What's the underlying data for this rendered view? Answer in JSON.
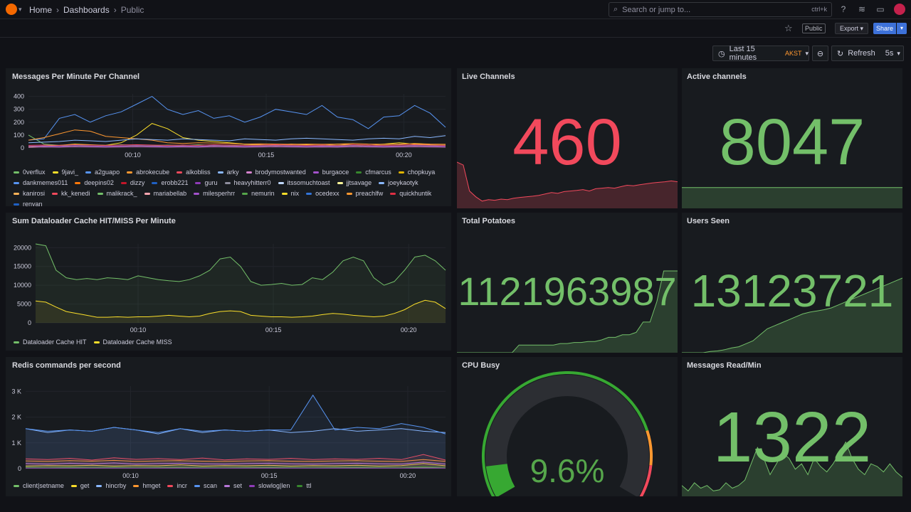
{
  "breadcrumb": {
    "home": "Home",
    "dashboards": "Dashboards",
    "current": "Public"
  },
  "search": {
    "placeholder": "Search or jump to...",
    "shortcut": "ctrl+k"
  },
  "subbar": {
    "public_tag": "Public",
    "export_label": "Export",
    "share_label": "Share"
  },
  "timepicker": {
    "range": "Last 15 minutes",
    "tz": "AKST",
    "refresh_label": "Refresh",
    "interval": "5s"
  },
  "colors": {
    "red": "#f2495c",
    "green": "#73bf69",
    "yellow": "#fade2a",
    "blue": "#5794f2"
  },
  "panels": {
    "messages": {
      "title": "Messages Per Minute Per Channel"
    },
    "live": {
      "title": "Live Channels",
      "value": "460"
    },
    "active": {
      "title": "Active channels",
      "value": "8047"
    },
    "dataloader": {
      "title": "Sum Dataloader Cache HIT/MISS Per Minute"
    },
    "potatoes": {
      "title": "Total Potatoes",
      "value": "1121963987"
    },
    "users": {
      "title": "Users Seen",
      "value": "13123721"
    },
    "redis": {
      "title": "Redis commands per second"
    },
    "cpu": {
      "title": "CPU Busy",
      "value": "9.6%",
      "fraction": 0.096
    },
    "msgread": {
      "title": "Messages Read/Min",
      "value": "1322"
    }
  },
  "chart_data": [
    {
      "type": "line",
      "title": "Messages Per Minute Per Channel",
      "x_ticks": [
        "00:10",
        "00:15",
        "00:20"
      ],
      "y_ticks": [
        "0",
        "100",
        "200",
        "300",
        "400"
      ],
      "ylim": [
        0,
        420
      ],
      "legend_placement": "bottom",
      "series": [
        {
          "name": "0verflux",
          "color": "#73bf69",
          "values": [
            100,
            30,
            20,
            18,
            22,
            20,
            25,
            20,
            18,
            22,
            20,
            25,
            20,
            18,
            22,
            20,
            18,
            20,
            22,
            20,
            18,
            20,
            22,
            20,
            25,
            20,
            18,
            22
          ]
        },
        {
          "name": "9javi_",
          "color": "#fade2a",
          "values": [
            10,
            15,
            20,
            30,
            25,
            20,
            40,
            100,
            190,
            150,
            80,
            60,
            50,
            40,
            30,
            25,
            20,
            30,
            25,
            20,
            30,
            25,
            20,
            30,
            40,
            30,
            25,
            20
          ]
        },
        {
          "name": "a2guapo",
          "color": "#5794f2",
          "values": [
            60,
            70,
            230,
            260,
            200,
            250,
            280,
            340,
            400,
            300,
            260,
            290,
            230,
            250,
            200,
            240,
            300,
            280,
            260,
            330,
            240,
            220,
            150,
            240,
            250,
            330,
            270,
            160
          ]
        },
        {
          "name": "abrokecube",
          "color": "#ff9830",
          "values": [
            60,
            80,
            110,
            140,
            130,
            90,
            80,
            70,
            60,
            40,
            35,
            40,
            38,
            35,
            30,
            32,
            30,
            28,
            30,
            28,
            30,
            35,
            30,
            28,
            30,
            35,
            30,
            28
          ]
        },
        {
          "name": "alkobliss",
          "color": "#f2495c",
          "values": [
            20,
            22,
            20,
            25,
            22,
            20,
            22,
            25,
            22,
            20,
            22,
            20,
            25,
            22,
            20,
            22,
            25,
            22,
            20,
            22,
            20,
            25,
            22,
            20,
            22,
            25,
            22,
            20
          ]
        },
        {
          "name": "arky",
          "color": "#8ab8ff",
          "values": [
            40,
            45,
            50,
            60,
            55,
            50,
            60,
            70,
            65,
            60,
            70,
            65,
            60,
            55,
            70,
            65,
            60,
            70,
            75,
            70,
            65,
            60,
            70,
            75,
            70,
            90,
            80,
            95
          ]
        },
        {
          "name": "brodymostwanted",
          "color": "#d683ce",
          "values": [
            5,
            8,
            6,
            10,
            8,
            6,
            8,
            10,
            8,
            6,
            8,
            6,
            10,
            8,
            6,
            8,
            10,
            8,
            6,
            8,
            6,
            10,
            8,
            6,
            8,
            10,
            8,
            6
          ]
        },
        {
          "name": "burgaoce",
          "color": "#a352cc",
          "values": [
            12,
            15,
            12,
            18,
            15,
            12,
            15,
            18,
            15,
            12,
            15,
            12,
            18,
            15,
            12,
            15,
            18,
            15,
            12,
            15,
            12,
            18,
            15,
            12,
            15,
            18,
            15,
            12
          ]
        }
      ]
    },
    {
      "type": "area",
      "title": "Live Channels",
      "values": [
        160,
        150,
        60,
        40,
        25,
        30,
        28,
        32,
        30,
        35,
        38,
        40,
        42,
        45,
        50,
        55,
        52,
        58,
        60,
        62,
        65,
        60,
        68,
        70,
        72,
        70,
        75,
        80,
        78,
        82,
        85,
        88,
        90,
        92,
        95,
        92
      ]
    },
    {
      "type": "area",
      "title": "Active channels",
      "values": [
        50,
        50,
        50,
        50,
        50,
        50,
        50,
        50,
        50,
        50,
        50,
        50
      ]
    },
    {
      "type": "line",
      "title": "Sum Dataloader Cache HIT/MISS Per Minute",
      "x_ticks": [
        "00:10",
        "00:15",
        "00:20"
      ],
      "y_ticks": [
        "0",
        "5000",
        "10000",
        "15000",
        "20000"
      ],
      "ylim": [
        0,
        21000
      ],
      "legend_placement": "bottom",
      "series": [
        {
          "name": "Dataloader Cache HIT",
          "color": "#73bf69",
          "values": [
            21000,
            20500,
            14000,
            12000,
            11500,
            11800,
            11500,
            12000,
            11800,
            11500,
            12500,
            12000,
            11500,
            11200,
            11000,
            11500,
            12500,
            14000,
            17000,
            17500,
            15000,
            11000,
            10000,
            10200,
            10500,
            10000,
            10200,
            12000,
            11500,
            13500,
            16500,
            17500,
            16500,
            12000,
            10000,
            11000,
            14000,
            17500,
            18000,
            16500,
            14000
          ]
        },
        {
          "name": "Dataloader Cache MISS",
          "color": "#fade2a",
          "values": [
            5800,
            5500,
            4200,
            3000,
            2500,
            2000,
            1500,
            1500,
            1600,
            1500,
            1600,
            1600,
            1800,
            2000,
            1800,
            1600,
            1800,
            2500,
            3000,
            3200,
            3000,
            2000,
            1800,
            1600,
            1600,
            1500,
            1600,
            1800,
            2200,
            2500,
            2300,
            2000,
            1800,
            1600,
            1800,
            2500,
            3500,
            5000,
            6000,
            5500,
            3800
          ]
        }
      ]
    },
    {
      "type": "area",
      "title": "Total Potatoes",
      "values": [
        0,
        0,
        0,
        0,
        0,
        0,
        0,
        0,
        0,
        15,
        15,
        15,
        15,
        15,
        15,
        18,
        18,
        20,
        20,
        22,
        22,
        25,
        30,
        30,
        35,
        35,
        40,
        60,
        60,
        100,
        160,
        160,
        160
      ]
    },
    {
      "type": "area",
      "title": "Users Seen",
      "values": [
        0,
        0,
        0,
        0,
        2,
        3,
        5,
        8,
        10,
        15,
        20,
        30,
        40,
        45,
        50,
        55,
        60,
        65,
        68,
        70,
        72,
        75,
        80,
        85,
        90,
        95,
        100,
        105,
        110,
        115,
        120,
        125
      ]
    },
    {
      "type": "line",
      "title": "Redis commands per second",
      "x_ticks": [
        "00:10",
        "00:15",
        "00:20"
      ],
      "y_ticks": [
        "0",
        "1 K",
        "2 K",
        "3 K"
      ],
      "ylim": [
        0,
        3200
      ],
      "legend_placement": "bottom",
      "series": [
        {
          "name": "client|setname",
          "color": "#73bf69",
          "values": [
            50,
            50,
            50,
            50,
            50,
            50,
            50,
            50,
            50,
            50,
            50,
            50,
            50,
            50,
            50,
            50,
            50,
            50,
            50,
            50
          ]
        },
        {
          "name": "get",
          "color": "#fade2a",
          "values": [
            100,
            120,
            110,
            130,
            100,
            120,
            110,
            150,
            100,
            120,
            110,
            130,
            100,
            120,
            110,
            130,
            100,
            120,
            200,
            110
          ]
        },
        {
          "name": "hincrby",
          "color": "#8ab8ff",
          "values": [
            1550,
            1400,
            1500,
            1450,
            1600,
            1500,
            1350,
            1550,
            1400,
            1500,
            1450,
            1500,
            1400,
            1450,
            1550,
            1450,
            1500,
            1550,
            1450,
            1400
          ]
        },
        {
          "name": "hmget",
          "color": "#ff9830",
          "values": [
            300,
            280,
            310,
            290,
            320,
            280,
            300,
            310,
            290,
            280,
            300,
            310,
            290,
            280,
            300,
            310,
            290,
            280,
            350,
            280
          ]
        },
        {
          "name": "incr",
          "color": "#f2495c",
          "values": [
            380,
            350,
            400,
            330,
            420,
            360,
            390,
            350,
            410,
            340,
            380,
            360,
            400,
            350,
            380,
            360,
            400,
            350,
            550,
            330
          ]
        },
        {
          "name": "scan",
          "color": "#5794f2",
          "values": [
            1550,
            1450,
            1500,
            1450,
            1600,
            1500,
            1400,
            1550,
            1450,
            1500,
            1450,
            1500,
            1500,
            2850,
            1500,
            1600,
            1550,
            1750,
            1600,
            1350
          ]
        },
        {
          "name": "set",
          "color": "#b877d9",
          "values": [
            200,
            180,
            210,
            190,
            220,
            180,
            200,
            210,
            190,
            180,
            200,
            210,
            190,
            180,
            200,
            210,
            190,
            180,
            250,
            180
          ]
        },
        {
          "name": "slowlog|len",
          "color": "#8f3bb8",
          "values": [
            20,
            20,
            20,
            20,
            20,
            20,
            20,
            20,
            20,
            20,
            20,
            20,
            20,
            20,
            20,
            20,
            20,
            20,
            20,
            20
          ]
        },
        {
          "name": "ttl",
          "color": "#37872d",
          "values": [
            60,
            55,
            65,
            58,
            62,
            55,
            60,
            65,
            58,
            55,
            60,
            65,
            58,
            55,
            60,
            65,
            58,
            55,
            80,
            55
          ]
        }
      ]
    },
    {
      "type": "area",
      "title": "Messages Read/Min",
      "values": [
        20,
        10,
        25,
        15,
        20,
        10,
        12,
        25,
        15,
        20,
        30,
        60,
        90,
        70,
        40,
        60,
        80,
        70,
        50,
        60,
        40,
        70,
        55,
        45,
        60,
        80,
        100,
        70,
        50,
        40,
        60,
        55,
        45,
        60,
        45,
        35
      ]
    }
  ],
  "legend_rows": {
    "messages_extra": [
      "cfmarcus",
      "chopkuya",
      "dankmemes011",
      "deepins02",
      "dizzy",
      "erobb221",
      "guru",
      "heavyhitterr0",
      "itssomuchtoast",
      "jjtsavage",
      "joeykaotyk",
      "kanirosi",
      "kk_kenedi",
      "malikrack_",
      "mariabellab",
      "milesperhrr",
      "nemurin",
      "nix",
      "ocedexx",
      "preachlfw",
      "quickhuntik",
      "renyan"
    ],
    "messages_extra_colors": [
      "#37872d",
      "#e0b400",
      "#5794f2",
      "#ff780a",
      "#c4162a",
      "#1f60c4",
      "#8f3bb8",
      "#8e8e9e",
      "#c0d8ff",
      "#fff899",
      "#8ab8ff",
      "#ffb357",
      "#f2495c",
      "#73bf69",
      "#ffa6b0",
      "#a352cc",
      "#56a64b",
      "#fade2a",
      "#3274d9",
      "#ff9830",
      "#e02f44",
      "#1f60c4"
    ]
  }
}
